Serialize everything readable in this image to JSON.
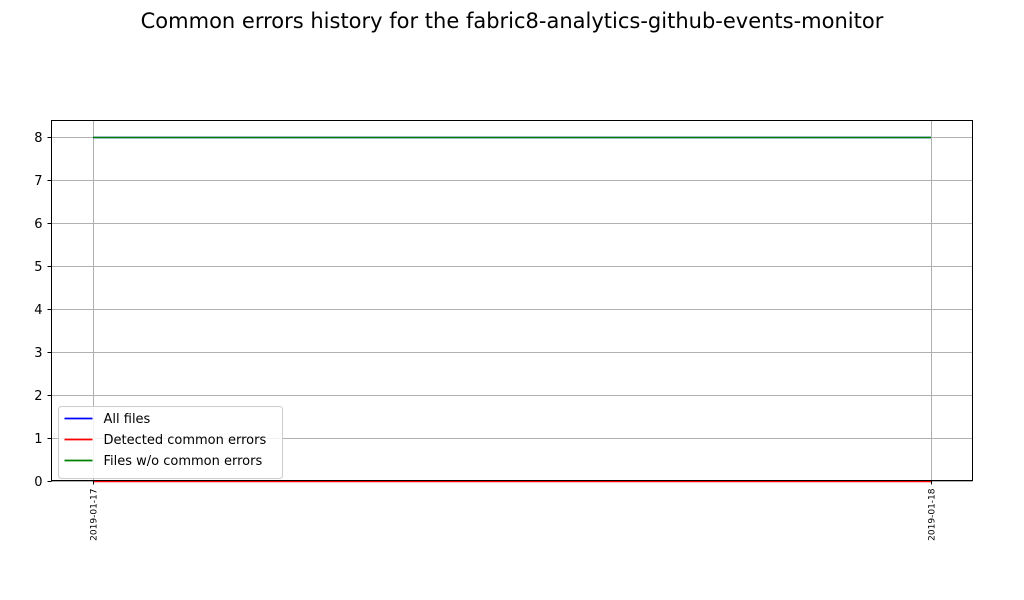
{
  "chart_data": {
    "type": "line",
    "title": "Common errors history for the fabric8-analytics-github-events-monitor",
    "xlabel": "",
    "ylabel": "",
    "x": [
      "2019-01-17",
      "2019-01-18"
    ],
    "ylim": [
      0,
      8.375
    ],
    "yticks": [
      0,
      1,
      2,
      3,
      4,
      5,
      6,
      7,
      8
    ],
    "grid": true,
    "legend_position": "lower-left",
    "series": [
      {
        "name": "All files",
        "color": "#0000ff",
        "values": [
          8,
          8
        ]
      },
      {
        "name": "Detected common errors",
        "color": "#ff0000",
        "values": [
          0,
          0
        ]
      },
      {
        "name": "Files w/o common errors",
        "color": "#008000",
        "values": [
          8,
          8
        ]
      }
    ]
  }
}
